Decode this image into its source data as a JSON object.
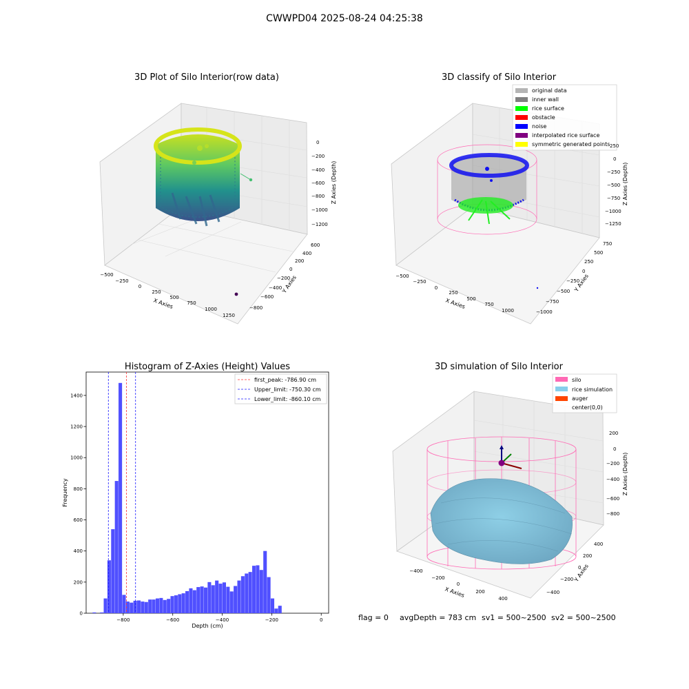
{
  "page": {
    "suptitle": "CWWPD04 2025-08-24 04:25:38",
    "footer": {
      "flag": "flag = 0",
      "avg_depth": "avgDepth = 783 cm",
      "sv1": "sv1 = 500~2500",
      "sv2": "sv2 = 500~2500"
    }
  },
  "colors": {
    "hist_bar": "#5050ff",
    "first_peak_line": "#ff3030",
    "limit_line": "#1a1aff",
    "original_data": "#b4b4b4",
    "inner_wall": "#808080",
    "rice_surface": "#00ff00",
    "obstacle": "#ff0000",
    "noise": "#0000ff",
    "interpolated_rice_surface": "#800080",
    "symmetric_generated_points": "#ffff00",
    "silo": "#ff69b4",
    "rice_simulation": "#87ceeb",
    "auger": "#ff4500"
  },
  "chart_data": [
    {
      "type": "scatter",
      "subtype": "3d_scatter",
      "title": "3D Plot of Silo Interior(row data)",
      "xlabel": "X Axies",
      "ylabel": "Y Axies",
      "zlabel": "Z Axies (Depth)",
      "x_ticks": [
        "−500",
        "−250",
        "0",
        "250",
        "500",
        "750",
        "1000",
        "1250"
      ],
      "y_ticks": [
        "−800",
        "−600",
        "−400",
        "−200",
        "0",
        "200",
        "400",
        "600"
      ],
      "z_ticks": [
        "−1200",
        "−1000",
        "−800",
        "−600",
        "−400",
        "−200",
        "0"
      ],
      "xlim": [
        -500,
        1250
      ],
      "ylim": [
        -800,
        600
      ],
      "zlim": [
        -1300,
        0
      ],
      "colormap": "viridis"
    },
    {
      "type": "scatter",
      "subtype": "3d_scatter",
      "title": "3D classify of Silo Interior",
      "xlabel": "X Axies",
      "ylabel": "Y Axies",
      "zlabel": "Z Axies (Depth)",
      "x_ticks": [
        "−500",
        "−250",
        "0",
        "250",
        "500",
        "750",
        "1000"
      ],
      "y_ticks": [
        "−1000",
        "−750",
        "−500",
        "−250",
        "0",
        "250",
        "500",
        "750"
      ],
      "z_ticks": [
        "−1250",
        "−1000",
        "−750",
        "−500",
        "−250",
        "0",
        "250"
      ],
      "xlim": [
        -500,
        1000
      ],
      "ylim": [
        -1000,
        750
      ],
      "zlim": [
        -1300,
        300
      ],
      "legend": [
        "original data",
        "inner wall",
        "rice surface",
        "obstacle",
        "noise",
        "interpolated rice surface",
        "symmetric generated points"
      ],
      "legend_position": "top-right"
    },
    {
      "type": "bar",
      "subtype": "histogram",
      "title": "Histogram of Z-Axies (Height) Values",
      "xlabel": "Depth (cm)",
      "ylabel": "Frequency",
      "xlim": [
        -950,
        30
      ],
      "ylim": [
        0,
        1550
      ],
      "x_ticks": [
        -800,
        -600,
        -400,
        -200,
        0
      ],
      "x_tick_labels": [
        "−800",
        "−600",
        "−400",
        "−200",
        "0"
      ],
      "y_ticks": [
        0,
        200,
        400,
        600,
        800,
        1000,
        1200,
        1400
      ],
      "y_tick_labels": [
        "0",
        "200",
        "400",
        "600",
        "800",
        "1000",
        "1200",
        "1400"
      ],
      "bin_start": -924,
      "bin_width": 15,
      "values": [
        5,
        0,
        5,
        95,
        340,
        540,
        850,
        1480,
        118,
        75,
        68,
        80,
        82,
        75,
        72,
        88,
        88,
        95,
        98,
        85,
        92,
        110,
        115,
        122,
        128,
        142,
        160,
        148,
        168,
        172,
        165,
        200,
        180,
        210,
        190,
        198,
        170,
        140,
        175,
        210,
        238,
        255,
        265,
        305,
        308,
        278,
        400,
        232,
        95,
        30,
        48
      ],
      "vlines": [
        {
          "x": -786.9,
          "style": "dashed",
          "color": "#ff3030",
          "label": "first_peak: -786.90 cm"
        },
        {
          "x": -750.3,
          "style": "dashed",
          "color": "#1a1aff",
          "label": "Upper_limit: -750.30 cm"
        },
        {
          "x": -860.1,
          "style": "dashed",
          "color": "#1a1aff",
          "label": "Lower_limit: -860.10 cm"
        }
      ],
      "legend_position": "top-right"
    },
    {
      "type": "scatter",
      "subtype": "3d_surface",
      "title": "3D simulation of Silo Interior",
      "xlabel": "X Axies",
      "ylabel": "Y Axies",
      "zlabel": "Z Axies (Depth)",
      "x_ticks": [
        "−400",
        "−200",
        "0",
        "200",
        "400"
      ],
      "y_ticks": [
        "−400",
        "−200",
        "0",
        "200",
        "400"
      ],
      "z_ticks": [
        "−800",
        "−600",
        "−400",
        "−200",
        "0",
        "200"
      ],
      "xlim": [
        -500,
        500
      ],
      "ylim": [
        -500,
        500
      ],
      "zlim": [
        -900,
        300
      ],
      "legend": [
        "silo",
        "rice simulation",
        "auger",
        "center(0,0)"
      ],
      "legend_position": "top-right"
    }
  ]
}
